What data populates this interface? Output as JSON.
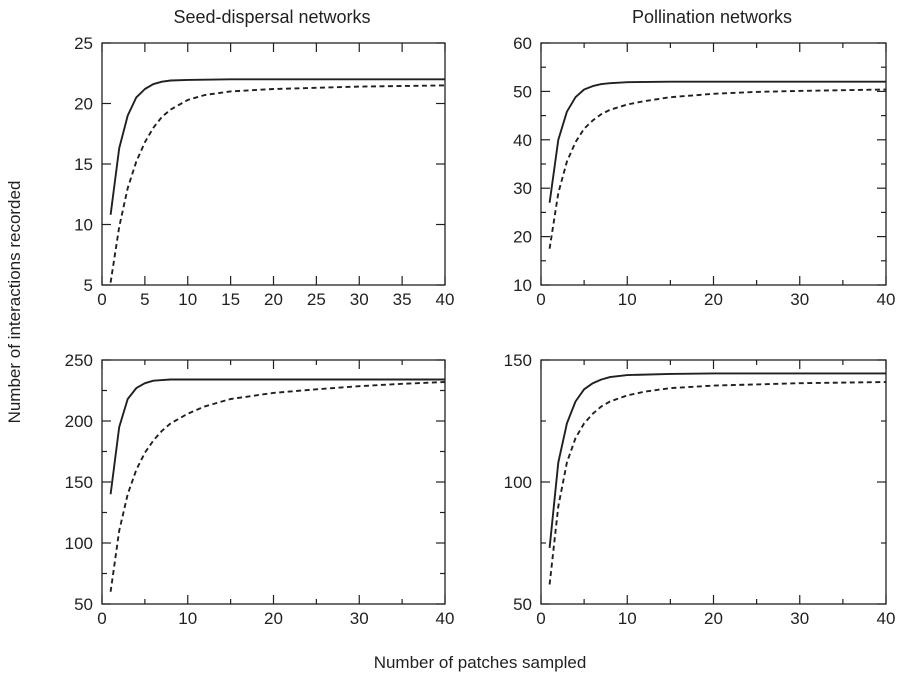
{
  "figure": {
    "column_titles": [
      "Seed-dispersal networks",
      "Pollination networks"
    ],
    "xlabel": "Number of patches sampled",
    "ylabel": "Number of interactions recorded"
  },
  "chart_data": [
    {
      "type": "line",
      "column": "Seed-dispersal networks",
      "xlim": [
        0,
        40
      ],
      "ylim": [
        5,
        25
      ],
      "xticks": [
        0,
        5,
        10,
        15,
        20,
        25,
        30,
        35,
        40
      ],
      "yticks": [
        5,
        10,
        15,
        20,
        25
      ],
      "x_minor_ticks": [],
      "y_minor_ticks": [],
      "grid": false,
      "series": [
        {
          "style": "solid",
          "x": [
            1,
            2,
            3,
            4,
            5,
            6,
            7,
            8,
            10,
            15,
            20,
            30,
            40
          ],
          "y": [
            10.8,
            16.3,
            19.0,
            20.5,
            21.2,
            21.6,
            21.8,
            21.9,
            21.95,
            22.0,
            22.0,
            22.0,
            22.0
          ]
        },
        {
          "style": "dashed",
          "x": [
            1,
            2,
            3,
            4,
            5,
            6,
            7,
            8,
            10,
            12,
            15,
            20,
            25,
            30,
            40
          ],
          "y": [
            5.2,
            9.8,
            13.0,
            15.2,
            16.8,
            18.0,
            18.9,
            19.5,
            20.3,
            20.7,
            21.0,
            21.2,
            21.3,
            21.4,
            21.5
          ]
        }
      ]
    },
    {
      "type": "line",
      "column": "Pollination networks",
      "xlim": [
        0,
        40
      ],
      "ylim": [
        10,
        60
      ],
      "xticks": [
        0,
        10,
        20,
        30,
        40
      ],
      "yticks": [
        10,
        20,
        30,
        40,
        50,
        60
      ],
      "x_minor_ticks": [
        5,
        15,
        25,
        35
      ],
      "y_minor_ticks": [
        15,
        25,
        35,
        45,
        55
      ],
      "grid": false,
      "series": [
        {
          "style": "solid",
          "x": [
            1,
            2,
            3,
            4,
            5,
            6,
            7,
            8,
            10,
            15,
            20,
            30,
            40
          ],
          "y": [
            27.0,
            40.0,
            45.8,
            48.8,
            50.4,
            51.1,
            51.5,
            51.7,
            51.9,
            52.0,
            52.0,
            52.0,
            52.0
          ]
        },
        {
          "style": "dashed",
          "x": [
            1,
            2,
            3,
            4,
            5,
            6,
            7,
            8,
            10,
            12,
            15,
            20,
            25,
            30,
            40
          ],
          "y": [
            17.5,
            29.0,
            35.5,
            39.5,
            42.3,
            44.0,
            45.3,
            46.2,
            47.3,
            48.0,
            48.8,
            49.5,
            49.9,
            50.1,
            50.4
          ]
        }
      ]
    },
    {
      "type": "line",
      "column": "Seed-dispersal networks",
      "xlim": [
        0,
        40
      ],
      "ylim": [
        50,
        250
      ],
      "xticks": [
        0,
        10,
        20,
        30,
        40
      ],
      "yticks": [
        50,
        100,
        150,
        200,
        250
      ],
      "x_minor_ticks": [
        5,
        15,
        25,
        35
      ],
      "y_minor_ticks": [
        75,
        125,
        175,
        225
      ],
      "grid": false,
      "series": [
        {
          "style": "solid",
          "x": [
            1,
            2,
            3,
            4,
            5,
            6,
            7,
            8,
            10,
            15,
            20,
            30,
            40
          ],
          "y": [
            140,
            195,
            218,
            227,
            231,
            233,
            233.5,
            234,
            234,
            234,
            234,
            234,
            234
          ]
        },
        {
          "style": "dashed",
          "x": [
            1,
            2,
            3,
            4,
            5,
            6,
            7,
            8,
            10,
            12,
            15,
            20,
            25,
            30,
            35,
            40
          ],
          "y": [
            60,
            110,
            140,
            160,
            174,
            184,
            192,
            198,
            206,
            212,
            218,
            223,
            226,
            228.5,
            230.5,
            232
          ]
        }
      ]
    },
    {
      "type": "line",
      "column": "Pollination networks",
      "xlim": [
        0,
        40
      ],
      "ylim": [
        50,
        150
      ],
      "xticks": [
        0,
        10,
        20,
        30,
        40
      ],
      "yticks": [
        50,
        100,
        150
      ],
      "x_minor_ticks": [
        5,
        15,
        25,
        35
      ],
      "y_minor_ticks": [
        75,
        125
      ],
      "grid": false,
      "series": [
        {
          "style": "solid",
          "x": [
            1,
            2,
            3,
            4,
            5,
            6,
            7,
            8,
            10,
            15,
            20,
            30,
            40
          ],
          "y": [
            73,
            108,
            124,
            133,
            138,
            140.5,
            142,
            143,
            143.8,
            144.3,
            144.5,
            144.5,
            144.5
          ]
        },
        {
          "style": "dashed",
          "x": [
            1,
            2,
            3,
            4,
            5,
            6,
            7,
            8,
            10,
            12,
            15,
            20,
            25,
            30,
            40
          ],
          "y": [
            58,
            90,
            108,
            118,
            124,
            128,
            131,
            133,
            135.5,
            137,
            138.5,
            139.5,
            140,
            140.5,
            141
          ]
        }
      ]
    }
  ]
}
